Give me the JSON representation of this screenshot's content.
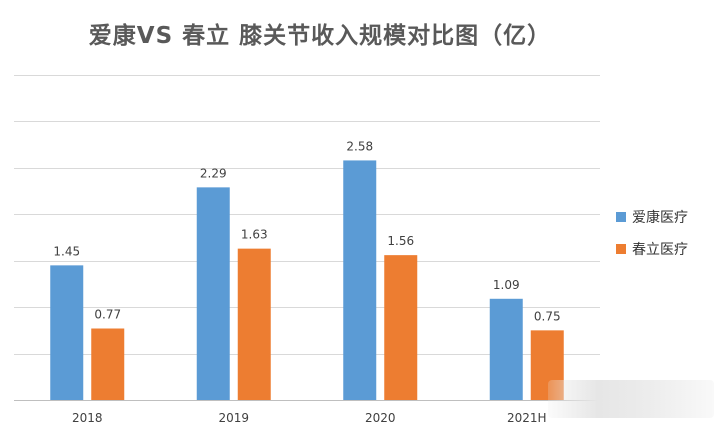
{
  "title": "爱康VS 春立 膝关节收入规模对比图（亿）",
  "colors": {
    "aikang": "#5b9bd5",
    "chunli": "#ed7d31",
    "grid": "#d9d9d9",
    "axis": "#bfbfbf",
    "label": "#404040"
  },
  "chart_data": {
    "type": "bar",
    "title": "爱康VS 春立 膝关节收入规模对比图（亿）",
    "categories": [
      "2018",
      "2019",
      "2020",
      "2021H"
    ],
    "series": [
      {
        "name": "爱康医疗",
        "values": [
          1.45,
          2.29,
          2.58,
          1.09
        ],
        "labels": [
          "1.45",
          "2.29",
          "2.58",
          "1.09"
        ]
      },
      {
        "name": "春立医疗",
        "values": [
          0.77,
          1.63,
          1.56,
          0.75
        ],
        "labels": [
          "0.77",
          "1.63",
          "1.56",
          "0.75"
        ]
      }
    ],
    "ylim": [
      0,
      3.5
    ],
    "grid": true,
    "legend": "right",
    "y_tick_labels_shown": false
  },
  "legend": {
    "items": [
      "爱康医疗",
      "春立医疗"
    ]
  }
}
